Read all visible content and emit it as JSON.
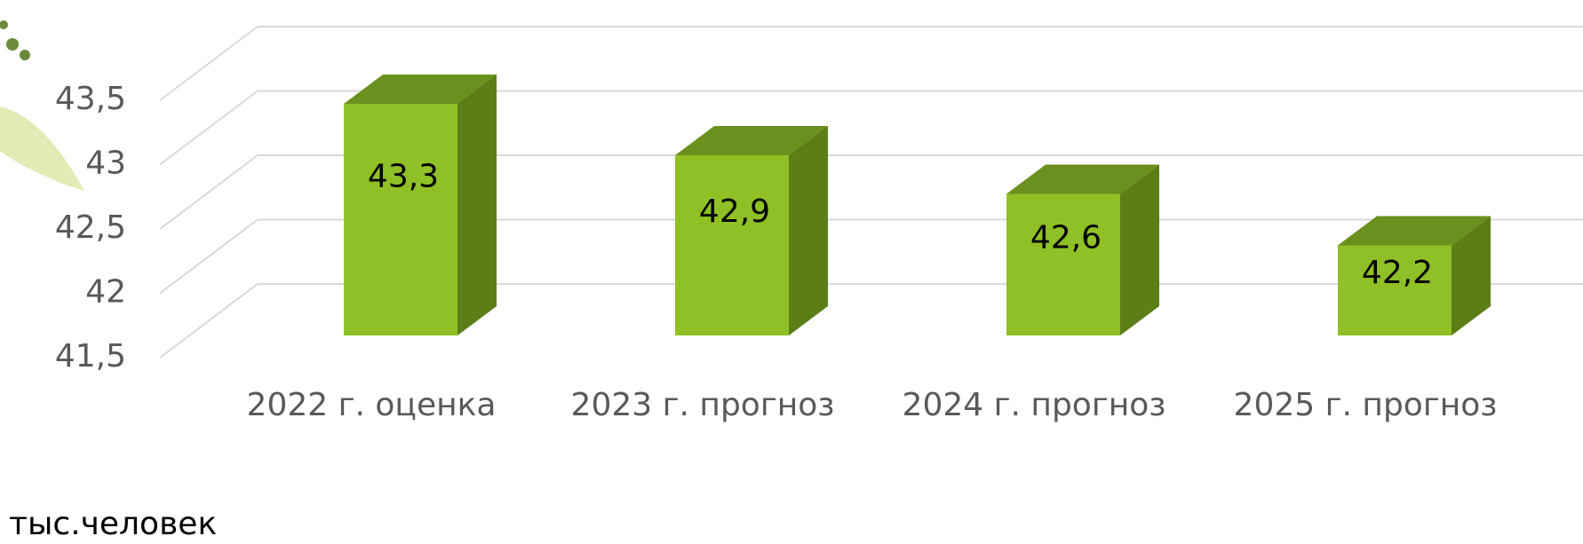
{
  "chart_data": {
    "type": "bar3d",
    "categories": [
      "2022 г. оценка",
      "2023 г. прогноз",
      "2024 г. прогноз",
      "2025 г. прогноз"
    ],
    "values": [
      43.3,
      42.9,
      42.6,
      42.2
    ],
    "value_labels": [
      "43,3",
      "42,9",
      "42,6",
      "42,2"
    ],
    "ylim": [
      41.5,
      43.5
    ],
    "yticks": [
      {
        "value": 41.5,
        "label": "41,5"
      },
      42,
      {
        "value": 42.5,
        "label": "42,5"
      },
      43,
      {
        "value": 43.5,
        "label": "43,5"
      }
    ],
    "grid": true,
    "color": "#8fc127",
    "unit_label": "тыс.человек"
  }
}
